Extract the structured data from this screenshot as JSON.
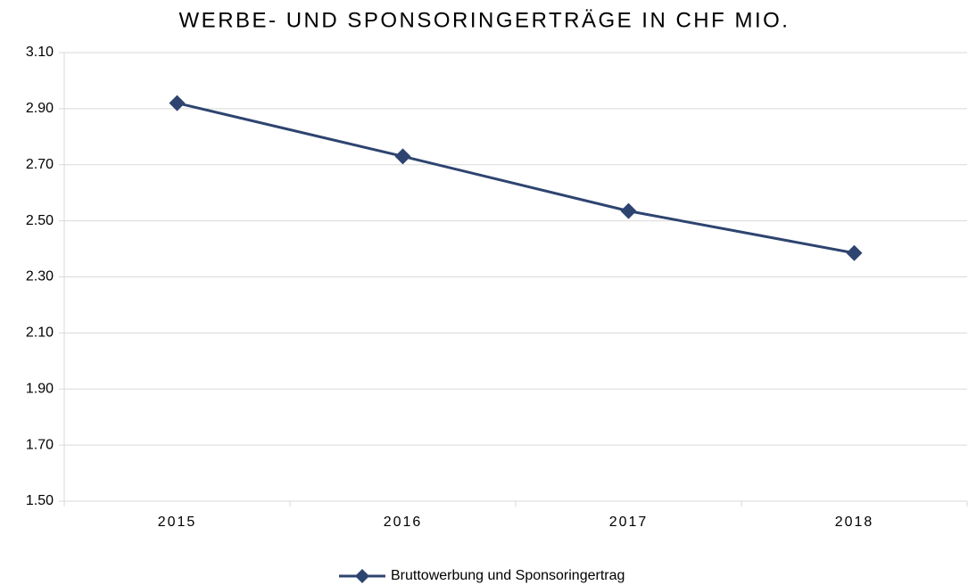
{
  "chart_data": {
    "type": "line",
    "title": "WERBE- UND SPONSORINGERTRÄGE IN CHF MIO.",
    "categories": [
      "2015",
      "2016",
      "2017",
      "2018"
    ],
    "series": [
      {
        "name": "Bruttowerbung und Sponsoringertrag",
        "color": "#2e4470",
        "values": [
          2.92,
          2.73,
          2.535,
          2.385
        ]
      }
    ],
    "ylim": [
      1.5,
      3.1
    ],
    "yticks": [
      {
        "value": 1.5,
        "label": "1.50"
      },
      {
        "value": 1.7,
        "label": "1.70"
      },
      {
        "value": 1.9,
        "label": "1.90"
      },
      {
        "value": 2.1,
        "label": "2.10"
      },
      {
        "value": 2.3,
        "label": "2.30"
      },
      {
        "value": 2.5,
        "label": "2.50"
      },
      {
        "value": 2.7,
        "label": "2.70"
      },
      {
        "value": 2.9,
        "label": "2.90"
      },
      {
        "value": 3.1,
        "label": "3.10"
      }
    ],
    "grid": true,
    "legend": "bottom"
  }
}
